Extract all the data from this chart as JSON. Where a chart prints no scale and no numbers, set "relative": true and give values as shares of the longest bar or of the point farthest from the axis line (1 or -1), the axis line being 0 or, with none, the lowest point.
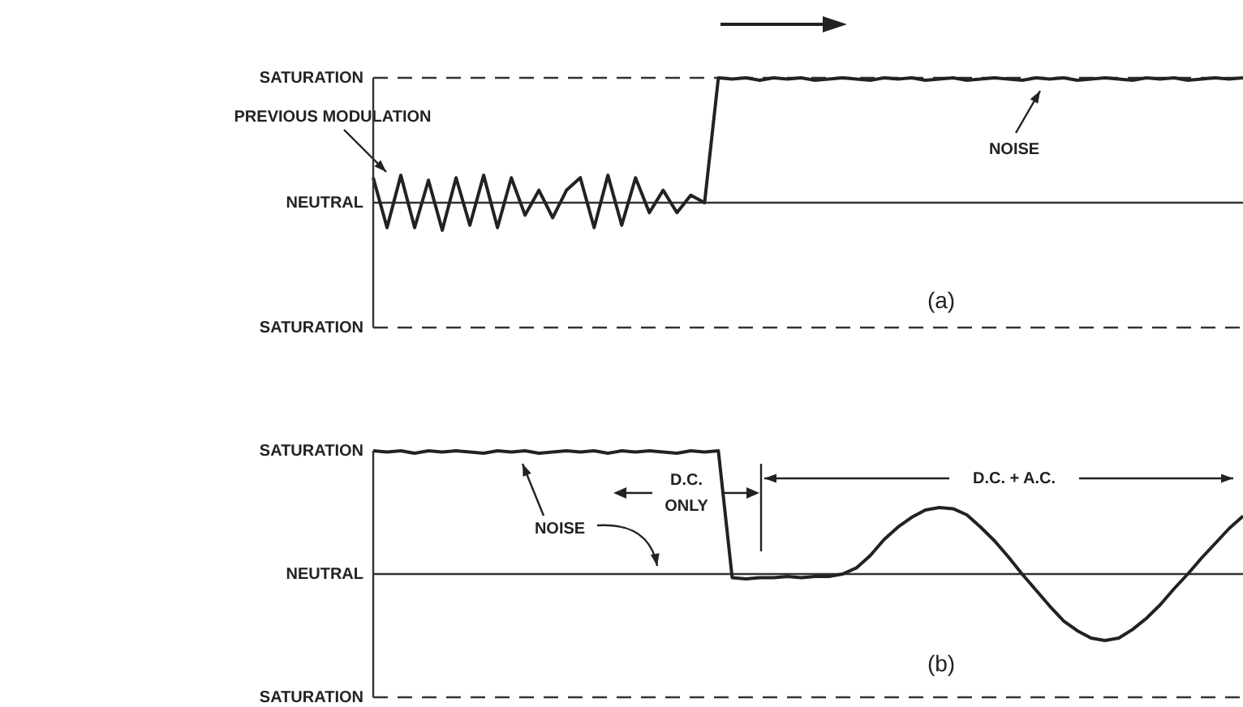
{
  "chart_data": [
    {
      "type": "line",
      "categories": [
        null,
        null,
        null,
        null,
        null,
        null,
        null,
        null,
        null,
        null,
        null,
        null,
        null,
        null,
        null,
        null,
        null,
        null,
        null,
        null,
        null,
        null,
        null,
        null,
        null,
        null,
        null,
        null,
        null,
        null,
        null,
        null,
        null,
        null,
        null,
        null,
        null,
        null,
        null,
        null,
        null,
        null,
        null,
        null,
        null,
        null,
        null,
        null,
        null,
        null,
        null,
        null,
        null,
        null,
        null,
        null,
        null,
        null,
        null,
        null,
        null,
        null,
        null,
        null
      ],
      "series": [
        {
          "color": "#222222",
          "values": [
            0.2,
            -0.2,
            0.22,
            -0.2,
            0.18,
            -0.22,
            0.2,
            -0.18,
            0.22,
            -0.2,
            0.2,
            -0.1,
            0.1,
            -0.12,
            0.1,
            0.2,
            -0.2,
            0.22,
            -0.18,
            0.2,
            -0.08,
            0.1,
            -0.08,
            0.06,
            0.0,
            1.0,
            0.99,
            1.0,
            0.98,
            1.0,
            0.99,
            1.0,
            0.98,
            0.99,
            1.0,
            0.99,
            0.98,
            1.0,
            0.99,
            1.0,
            0.98,
            0.99,
            1.0,
            0.98,
            0.99,
            1.0,
            0.99,
            0.98,
            1.0,
            0.99,
            1.0,
            0.98,
            0.99,
            1.0,
            0.99,
            0.98,
            1.0,
            0.99,
            1.0,
            0.98,
            0.99,
            1.0,
            0.99,
            1.0
          ]
        }
      ],
      "relative": true,
      "legend": false,
      "marker": "none",
      "line_style": "solid",
      "ref_lines": [
        {
          "axis": "y",
          "value": 1,
          "line_style": "dashed"
        },
        {
          "axis": "y",
          "value": 0,
          "line_style": "solid"
        },
        {
          "axis": "y",
          "value": -1,
          "line_style": "dashed"
        }
      ],
      "annotations": [
        "SATURATION",
        "NEUTRAL",
        "SATURATION",
        "PREVIOUS MODULATION",
        "NOISE",
        "(a)"
      ]
    },
    {
      "type": "line",
      "categories": [
        null,
        null,
        null,
        null,
        null,
        null,
        null,
        null,
        null,
        null,
        null,
        null,
        null,
        null,
        null,
        null,
        null,
        null,
        null,
        null,
        null,
        null,
        null,
        null,
        null,
        null,
        null,
        null,
        null,
        null,
        null,
        null,
        null,
        null,
        null,
        null,
        null,
        null,
        null,
        null,
        null,
        null,
        null,
        null,
        null,
        null,
        null,
        null,
        null,
        null,
        null,
        null,
        null,
        null,
        null,
        null,
        null,
        null,
        null,
        null,
        null,
        null,
        null,
        null
      ],
      "series": [
        {
          "color": "#222222",
          "values": [
            1.0,
            0.99,
            1.0,
            0.98,
            1.0,
            0.99,
            1.0,
            0.99,
            0.98,
            1.0,
            0.99,
            1.0,
            0.98,
            0.99,
            1.0,
            0.99,
            1.0,
            0.98,
            1.0,
            0.99,
            1.0,
            0.99,
            0.98,
            1.0,
            0.99,
            1.0,
            -0.03,
            -0.04,
            -0.03,
            -0.03,
            -0.02,
            -0.03,
            -0.02,
            -0.02,
            0.0,
            0.05,
            0.15,
            0.28,
            0.38,
            0.46,
            0.52,
            0.54,
            0.53,
            0.48,
            0.38,
            0.27,
            0.14,
            0.0,
            -0.13,
            -0.26,
            -0.38,
            -0.46,
            -0.52,
            -0.54,
            -0.52,
            -0.45,
            -0.36,
            -0.25,
            -0.12,
            0.0,
            0.13,
            0.25,
            0.37,
            0.47
          ]
        }
      ],
      "relative": true,
      "legend": false,
      "marker": "none",
      "line_style": "solid",
      "ref_lines": [
        {
          "axis": "y",
          "value": 0,
          "line_style": "solid"
        },
        {
          "axis": "y",
          "value": -1,
          "line_style": "dashed"
        }
      ],
      "annotations": [
        "SATURATION",
        "NEUTRAL",
        "SATURATION",
        "NOISE",
        "D.C. ONLY",
        "D.C. + A.C.",
        "(b)"
      ]
    }
  ]
}
